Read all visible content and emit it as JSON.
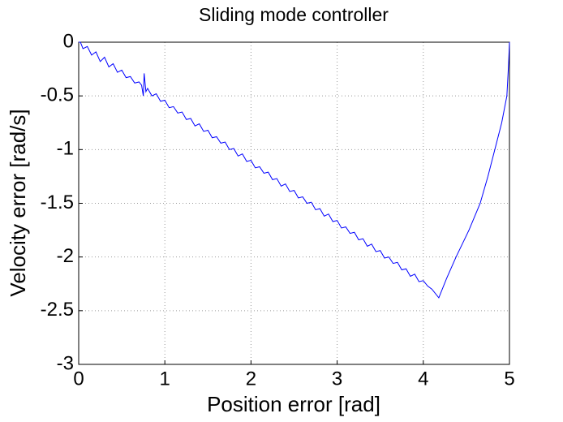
{
  "chart_data": {
    "type": "line",
    "title": "Sliding mode controller",
    "xlabel": "Position error [rad]",
    "ylabel": "Velocity error [rad/s]",
    "xlim": [
      0,
      5
    ],
    "ylim": [
      -3,
      0
    ],
    "xticks": [
      0,
      1,
      2,
      3,
      4,
      5
    ],
    "yticks": [
      -3,
      -2.5,
      -2,
      -1.5,
      -1,
      -0.5,
      0
    ],
    "grid": true,
    "series": [
      {
        "color": "#0000ff",
        "x": [
          5,
          4.99,
          4.97,
          4.91,
          4.83,
          4.75,
          4.66,
          4.53,
          4.38,
          4.27,
          4.18,
          4.1,
          4.05,
          4.0,
          3.95,
          3.9,
          3.85,
          3.8,
          3.75,
          3.7,
          3.65,
          3.6,
          3.55,
          3.5,
          3.45,
          3.4,
          3.35,
          3.3,
          3.25,
          3.2,
          3.15,
          3.1,
          3.05,
          3.0,
          2.95,
          2.9,
          2.85,
          2.8,
          2.75,
          2.7,
          2.65,
          2.6,
          2.55,
          2.5,
          2.45,
          2.4,
          2.35,
          2.3,
          2.25,
          2.2,
          2.15,
          2.1,
          2.05,
          2.0,
          1.95,
          1.9,
          1.85,
          1.8,
          1.75,
          1.7,
          1.65,
          1.6,
          1.55,
          1.5,
          1.45,
          1.4,
          1.35,
          1.3,
          1.25,
          1.2,
          1.15,
          1.1,
          1.05,
          1.0,
          0.95,
          0.9,
          0.85,
          0.8,
          0.78,
          0.76,
          0.75,
          0.73,
          0.7,
          0.65,
          0.6,
          0.55,
          0.5,
          0.45,
          0.4,
          0.35,
          0.3,
          0.25,
          0.2,
          0.15,
          0.1,
          0.05,
          0.02,
          0
        ],
        "values": [
          0,
          -0.2,
          -0.5,
          -0.75,
          -1,
          -1.25,
          -1.5,
          -1.75,
          -2,
          -2.2,
          -2.38,
          -2.3,
          -2.27,
          -2.22,
          -2.23,
          -2.16,
          -2.18,
          -2.11,
          -2.12,
          -2.05,
          -2.06,
          -2.0,
          -2.01,
          -1.94,
          -1.95,
          -1.88,
          -1.9,
          -1.83,
          -1.84,
          -1.77,
          -1.78,
          -1.72,
          -1.73,
          -1.66,
          -1.67,
          -1.6,
          -1.62,
          -1.55,
          -1.56,
          -1.49,
          -1.5,
          -1.44,
          -1.45,
          -1.38,
          -1.39,
          -1.32,
          -1.34,
          -1.27,
          -1.28,
          -1.21,
          -1.22,
          -1.16,
          -1.17,
          -1.1,
          -1.11,
          -1.04,
          -1.06,
          -0.99,
          -1.0,
          -0.93,
          -0.94,
          -0.88,
          -0.89,
          -0.82,
          -0.83,
          -0.76,
          -0.78,
          -0.71,
          -0.72,
          -0.65,
          -0.66,
          -0.6,
          -0.61,
          -0.54,
          -0.55,
          -0.48,
          -0.5,
          -0.43,
          -0.46,
          -0.29,
          -0.5,
          -0.4,
          -0.37,
          -0.38,
          -0.32,
          -0.33,
          -0.26,
          -0.28,
          -0.2,
          -0.23,
          -0.14,
          -0.18,
          -0.09,
          -0.12,
          -0.04,
          -0.06,
          0,
          0
        ]
      }
    ]
  }
}
